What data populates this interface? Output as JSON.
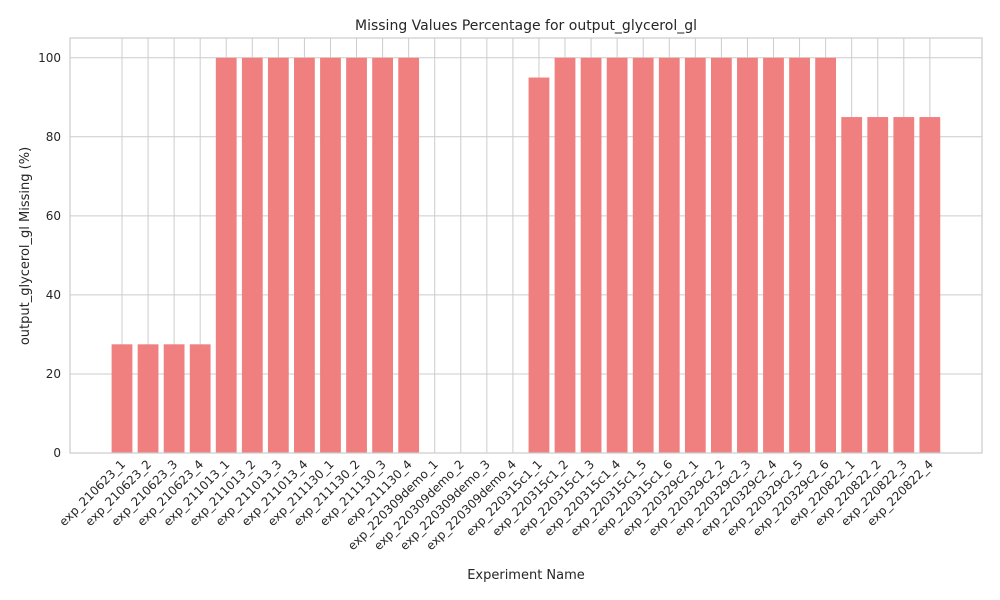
{
  "chart_data": {
    "type": "bar",
    "title": "Missing Values Percentage for output_glycerol_gl",
    "xlabel": "Experiment Name",
    "ylabel": "output_glycerol_gl Missing (%)",
    "categories": [
      "exp_210623_1",
      "exp_210623_2",
      "exp_210623_3",
      "exp_210623_4",
      "exp_211013_1",
      "exp_211013_2",
      "exp_211013_3",
      "exp_211013_4",
      "exp_211130_1",
      "exp_211130_2",
      "exp_211130_3",
      "exp_211130_4",
      "exp_220309demo_1",
      "exp_220309demo_2",
      "exp_220309demo_3",
      "exp_220309demo_4",
      "exp_220315c1_1",
      "exp_220315c1_2",
      "exp_220315c1_3",
      "exp_220315c1_4",
      "exp_220315c1_5",
      "exp_220315c1_6",
      "exp_220329c2_1",
      "exp_220329c2_2",
      "exp_220329c2_3",
      "exp_220329c2_4",
      "exp_220329c2_5",
      "exp_220329c2_6",
      "exp_220822_1",
      "exp_220822_2",
      "exp_220822_3",
      "exp_220822_4"
    ],
    "values": [
      27.5,
      27.5,
      27.5,
      27.5,
      100,
      100,
      100,
      100,
      100,
      100,
      100,
      100,
      0,
      0,
      0,
      0,
      95,
      100,
      100,
      100,
      100,
      100,
      100,
      100,
      100,
      100,
      100,
      100,
      85,
      85,
      85,
      85
    ],
    "ylim": [
      0,
      105
    ],
    "yticks": [
      0,
      20,
      40,
      60,
      80,
      100
    ],
    "bar_color": "#f08080",
    "grid": true
  }
}
